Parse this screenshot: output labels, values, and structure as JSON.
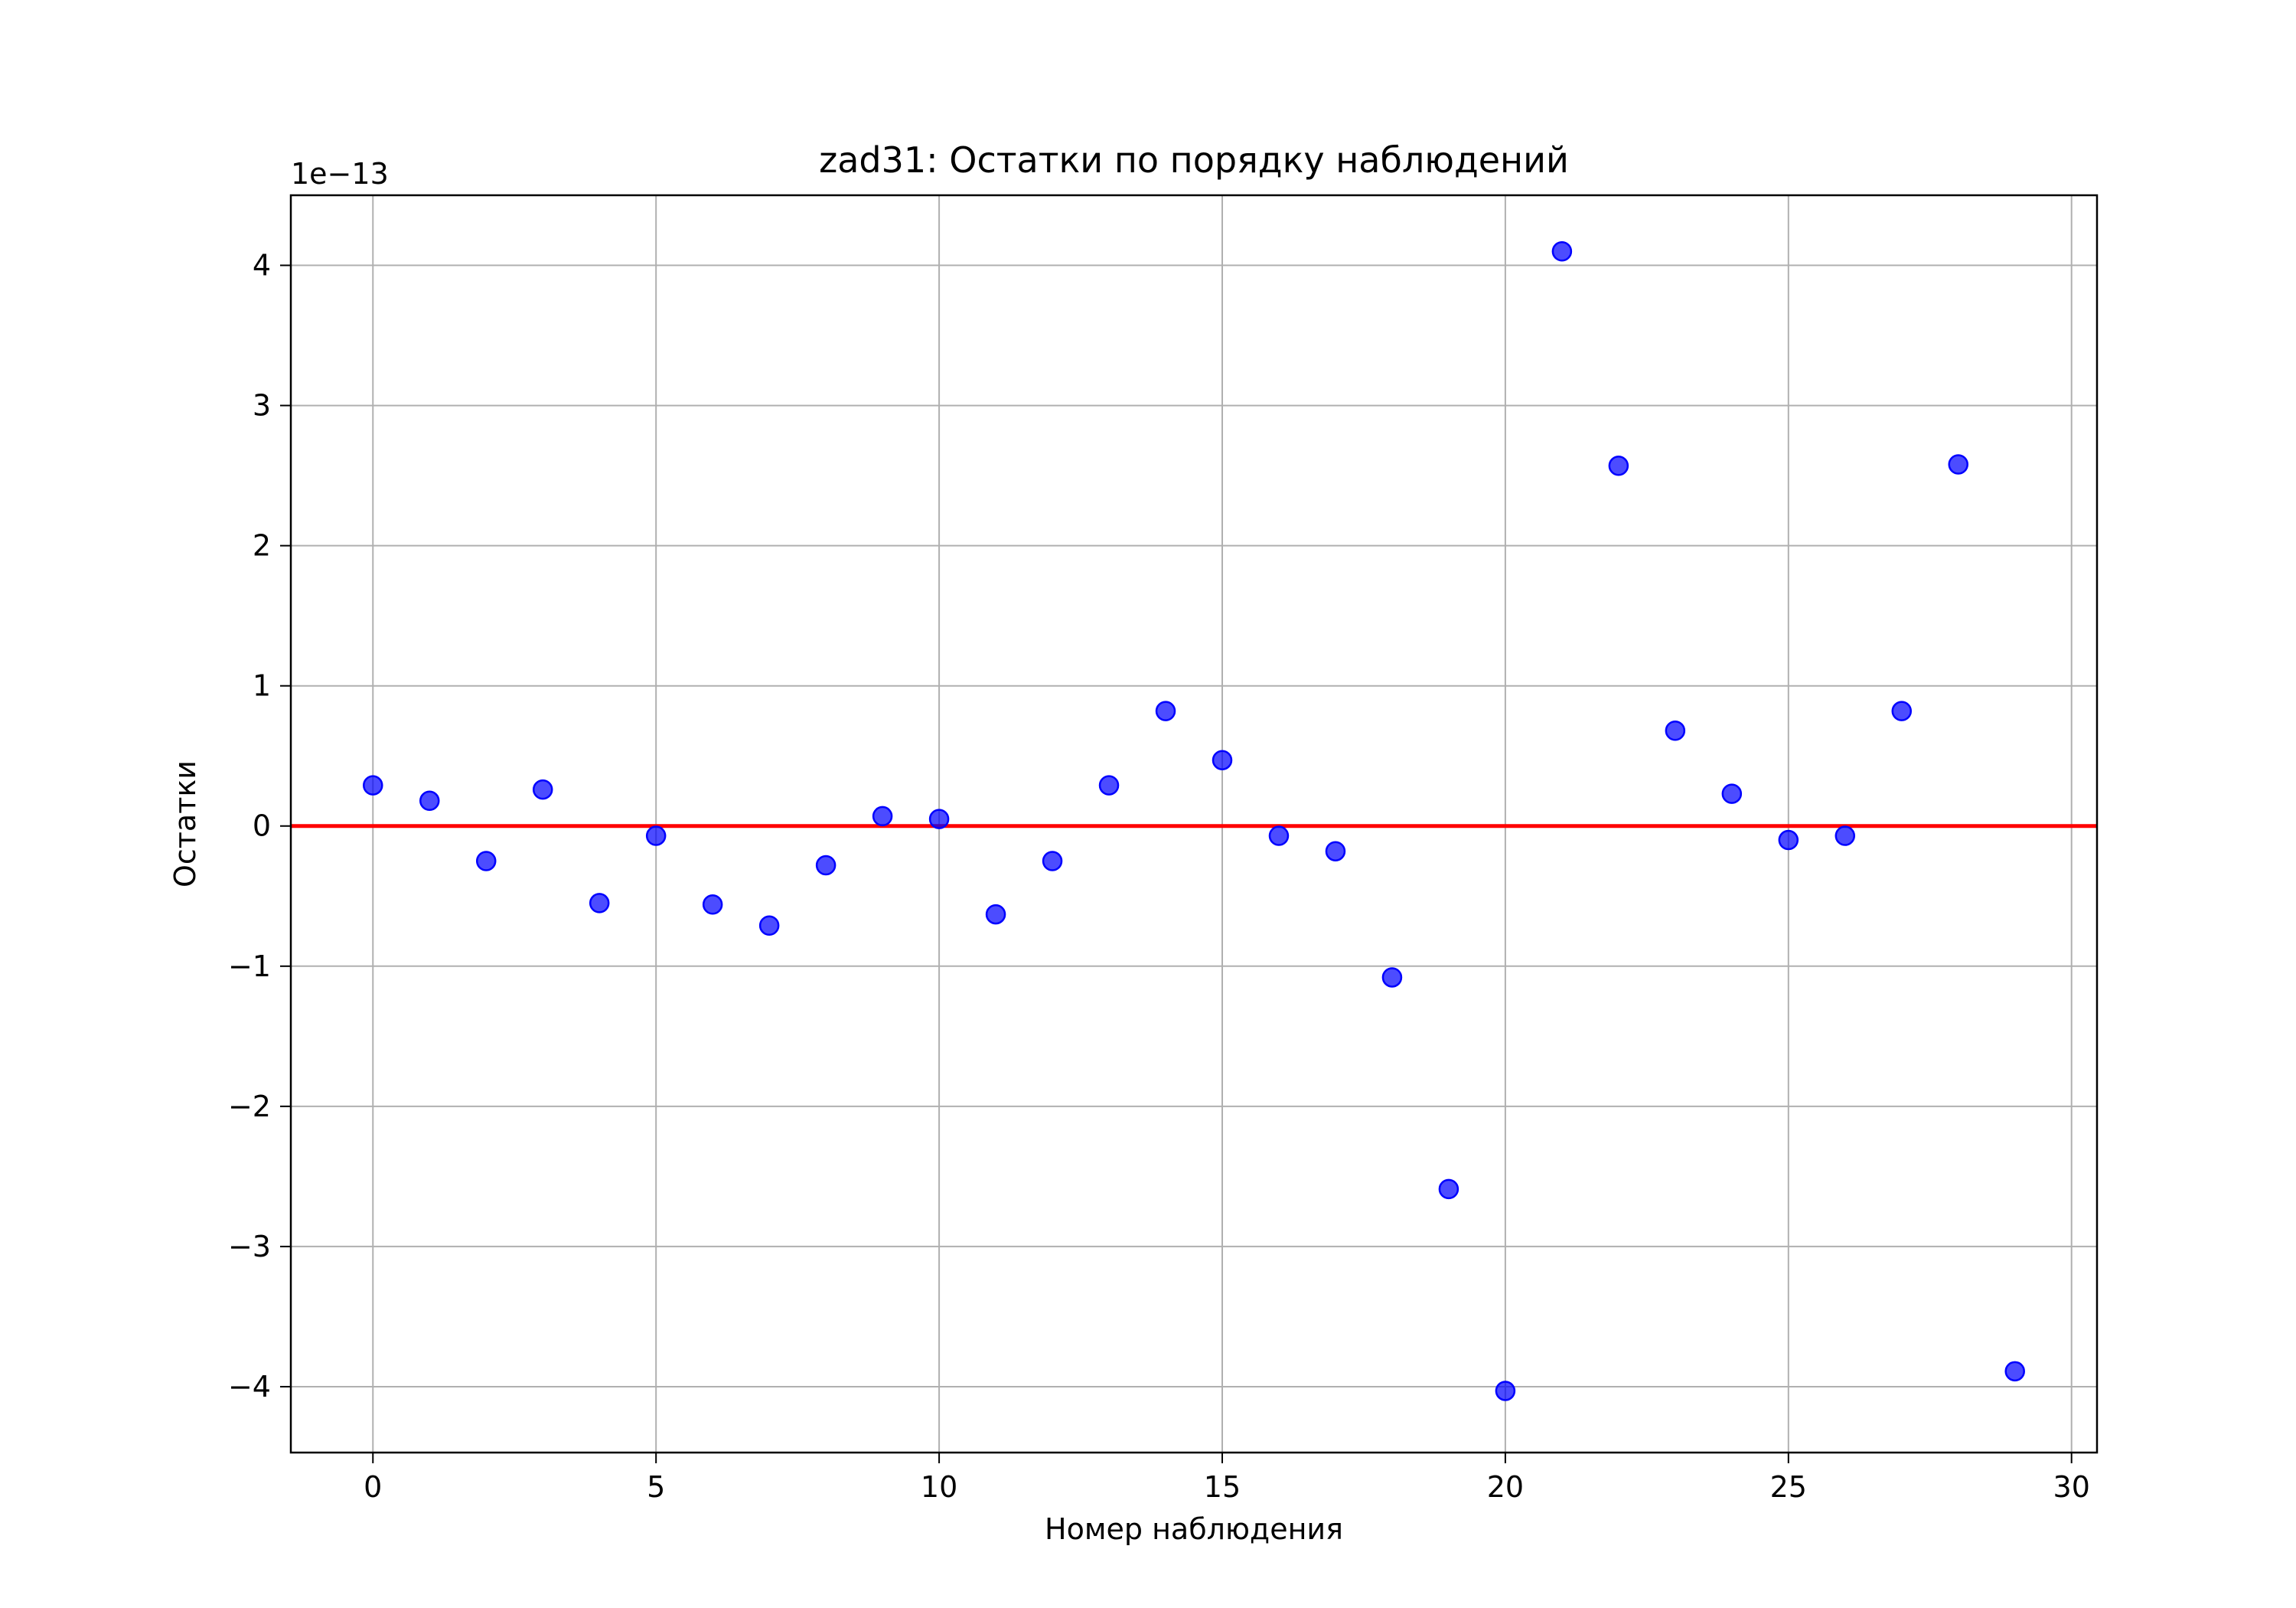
{
  "chart_data": {
    "type": "scatter",
    "title": "zad31: Остатки по порядку наблюдений",
    "xlabel": "Номер наблюдения",
    "ylabel": "Остатки",
    "y_offset_label": "1e−13",
    "xlim": [
      -1.45,
      30.45
    ],
    "ylim": [
      -4.47,
      4.5
    ],
    "x_ticks": [
      0,
      5,
      10,
      15,
      20,
      25,
      30
    ],
    "x_tick_labels": [
      "0",
      "5",
      "10",
      "15",
      "20",
      "25",
      "30"
    ],
    "y_ticks": [
      4,
      3,
      2,
      1,
      0,
      -1,
      -2,
      -3,
      -4
    ],
    "y_tick_labels": [
      "4",
      "3",
      "2",
      "1",
      "0",
      "−1",
      "−2",
      "−3",
      "−4"
    ],
    "grid": true,
    "reference_line": {
      "y": 0,
      "color": "#ff0000"
    },
    "series": [
      {
        "color": "#0000ff",
        "x": [
          0,
          1,
          2,
          3,
          4,
          5,
          6,
          7,
          8,
          9,
          10,
          11,
          12,
          13,
          14,
          15,
          16,
          17,
          18,
          19,
          20,
          21,
          22,
          23,
          24,
          25,
          26,
          27,
          28,
          29
        ],
        "y": [
          0.29,
          0.18,
          -0.25,
          0.26,
          -0.55,
          -0.07,
          -0.56,
          -0.71,
          -0.28,
          0.07,
          0.05,
          -0.63,
          -0.25,
          0.29,
          0.82,
          0.47,
          -0.07,
          -0.18,
          -1.08,
          -2.59,
          -4.03,
          4.1,
          2.57,
          0.68,
          0.23,
          -0.1,
          -0.07,
          0.82,
          2.58,
          -3.89
        ]
      }
    ]
  }
}
